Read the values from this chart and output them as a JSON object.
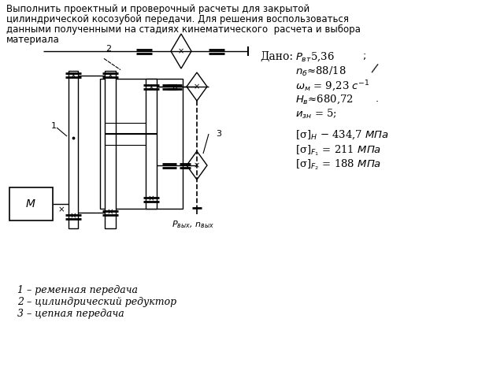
{
  "title_line1": "Выполнить проектный и проверочный расчеты для закрытой",
  "title_line2": "цилиндрической косозубой передачи. Для решения воспользоваться",
  "title_line3": "данными полученными на стадиях кинематического  расчета и выбора",
  "title_line4": "материала",
  "legend_lines": [
    "1 – ременная передача",
    "2 – цилиндрический редуктор",
    "3 – цепная передача"
  ],
  "bg_color": "#ffffff",
  "text_color": "#000000"
}
